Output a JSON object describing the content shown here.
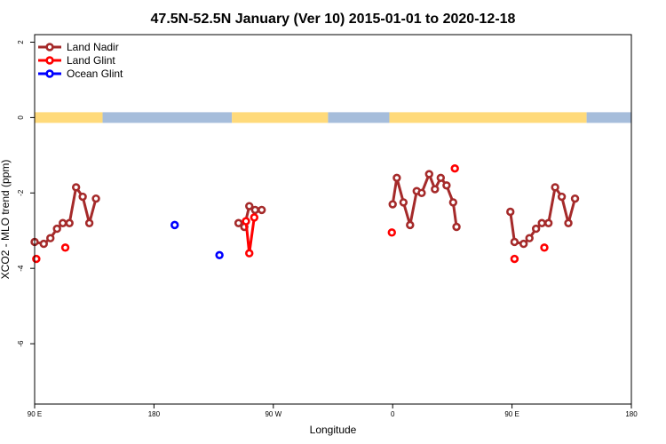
{
  "chart_data": {
    "type": "scatter",
    "title": "47.5N-52.5N January (Ver 10)   2015-01-01 to 2020-12-18",
    "xlabel": "Longitude",
    "ylabel": "XCO2 - MLO trend (ppm)",
    "xlim": [
      90,
      450
    ],
    "ylim": [
      -7.6,
      2.2
    ],
    "x_ticks": [
      {
        "value": 90,
        "label": "90 E"
      },
      {
        "value": 162,
        "label": "180"
      },
      {
        "value": 234,
        "label": "90 W"
      },
      {
        "value": 306,
        "label": "0"
      },
      {
        "value": 378,
        "label": "90 E"
      },
      {
        "value": 450,
        "label": "180"
      }
    ],
    "y_ticks": [
      {
        "value": 2,
        "label": "2"
      },
      {
        "value": 0,
        "label": "0"
      },
      {
        "value": -2,
        "label": "-2"
      },
      {
        "value": -4,
        "label": "-4"
      },
      {
        "value": -6,
        "label": "-6"
      }
    ],
    "land_mask": {
      "land_color": "#FFDA7A",
      "ocean_color": "#A6BDDB",
      "y": 0,
      "segments": [
        {
          "x0": 90,
          "x1": 131,
          "type": "land"
        },
        {
          "x0": 131,
          "x1": 209,
          "type": "ocean"
        },
        {
          "x0": 209,
          "x1": 267,
          "type": "land"
        },
        {
          "x0": 267,
          "x1": 304,
          "type": "ocean"
        },
        {
          "x0": 304,
          "x1": 423,
          "type": "land"
        },
        {
          "x0": 423,
          "x1": 450,
          "type": "ocean"
        }
      ]
    },
    "legend": {
      "position": "top-left",
      "entries": [
        {
          "label": "Land Nadir",
          "color": "#A52A2A",
          "line": true
        },
        {
          "label": "Land Glint",
          "color": "#FF0000",
          "line": true
        },
        {
          "label": "Ocean Glint",
          "color": "#0000FF",
          "line": true
        }
      ]
    },
    "series": [
      {
        "name": "Land Nadir",
        "color": "#A52A2A",
        "connected": true,
        "segments": [
          [
            [
              90,
              -3.3
            ],
            [
              95.5,
              -3.35
            ],
            [
              99.5,
              -3.2
            ],
            [
              103.5,
              -2.95
            ],
            [
              107,
              -2.8
            ],
            [
              111,
              -2.8
            ],
            [
              115,
              -1.85
            ],
            [
              119,
              -2.1
            ],
            [
              123,
              -2.8
            ],
            [
              127,
              -2.15
            ]
          ],
          [
            [
              213,
              -2.8
            ],
            [
              216.5,
              -2.9
            ],
            [
              219.5,
              -2.35
            ],
            [
              223,
              -2.45
            ],
            [
              227,
              -2.45
            ]
          ],
          [
            [
              306,
              -2.3
            ],
            [
              308.5,
              -1.6
            ],
            [
              312.5,
              -2.25
            ],
            [
              316.5,
              -2.85
            ],
            [
              320.5,
              -1.95
            ],
            [
              323.5,
              -2.0
            ],
            [
              328,
              -1.5
            ],
            [
              331.5,
              -1.9
            ],
            [
              335,
              -1.6
            ],
            [
              338.5,
              -1.8
            ],
            [
              342.5,
              -2.25
            ],
            [
              344.5,
              -2.9
            ]
          ],
          [
            [
              377,
              -2.5
            ],
            [
              379.5,
              -3.3
            ],
            [
              385,
              -3.35
            ],
            [
              388.5,
              -3.2
            ],
            [
              392.5,
              -2.95
            ],
            [
              396,
              -2.8
            ],
            [
              400,
              -2.8
            ],
            [
              404,
              -1.85
            ],
            [
              408,
              -2.1
            ],
            [
              412,
              -2.8
            ],
            [
              416,
              -2.15
            ]
          ]
        ]
      },
      {
        "name": "Land Glint",
        "color": "#FF0000",
        "connected": true,
        "segments": [
          [
            [
              91,
              -3.75
            ]
          ],
          [
            [
              108.5,
              -3.45
            ]
          ],
          [
            [
              217.5,
              -2.75
            ],
            [
              219.5,
              -3.6
            ],
            [
              222.5,
              -2.65
            ]
          ],
          [
            [
              305.5,
              -3.05
            ]
          ],
          [
            [
              343.5,
              -1.35
            ]
          ],
          [
            [
              379.5,
              -3.75
            ]
          ],
          [
            [
              397.5,
              -3.45
            ]
          ]
        ]
      },
      {
        "name": "Ocean Glint",
        "color": "#0000FF",
        "connected": false,
        "segments": [
          [
            [
              174.5,
              -2.85
            ]
          ],
          [
            [
              201.5,
              -3.65
            ]
          ]
        ]
      }
    ]
  }
}
